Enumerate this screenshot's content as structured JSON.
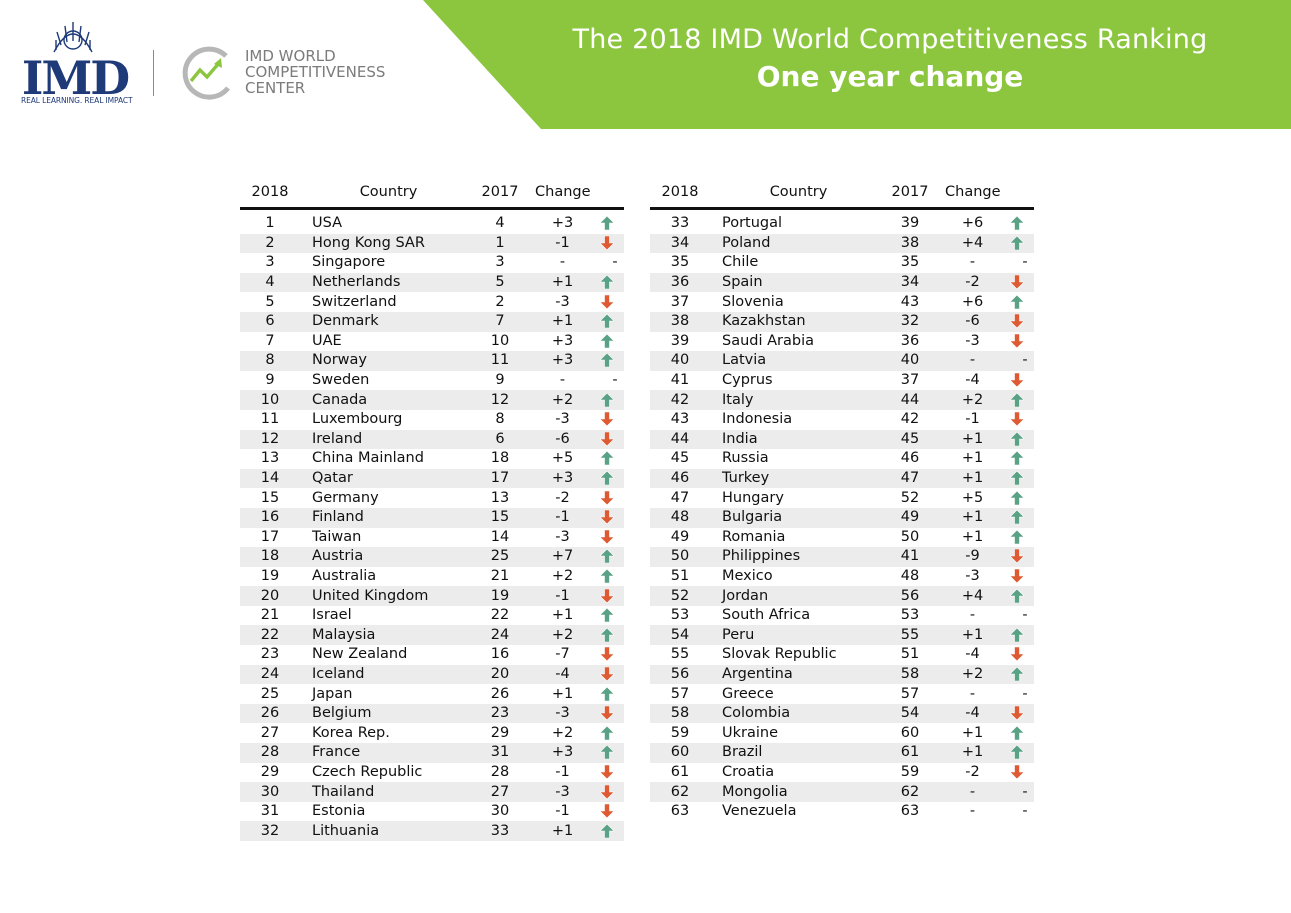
{
  "header": {
    "title": "The 2018 IMD World Competitiveness Ranking",
    "subtitle": "One year change",
    "imd_logo_text": "IMD",
    "imd_tagline": "REAL LEARNING. REAL IMPACT",
    "wcc_lines": [
      "IMD WORLD",
      "COMPETITIVENESS",
      "CENTER"
    ],
    "colors": {
      "banner_green": "#8cc63f",
      "imd_blue": "#1f3a78",
      "up_green": "#5aa285",
      "down_red": "#dd5a33"
    }
  },
  "table_headers": {
    "rank": "2018",
    "country": "Country",
    "prev": "2017",
    "change": "Change"
  },
  "rows": [
    {
      "rank": "1",
      "country": "USA",
      "prev": "4",
      "change": "+3",
      "dir": "up"
    },
    {
      "rank": "2",
      "country": "Hong Kong SAR",
      "prev": "1",
      "change": "-1",
      "dir": "down"
    },
    {
      "rank": "3",
      "country": "Singapore",
      "prev": "3",
      "change": "-",
      "dir": "same"
    },
    {
      "rank": "4",
      "country": "Netherlands",
      "prev": "5",
      "change": "+1",
      "dir": "up"
    },
    {
      "rank": "5",
      "country": "Switzerland",
      "prev": "2",
      "change": "-3",
      "dir": "down"
    },
    {
      "rank": "6",
      "country": "Denmark",
      "prev": "7",
      "change": "+1",
      "dir": "up"
    },
    {
      "rank": "7",
      "country": "UAE",
      "prev": "10",
      "change": "+3",
      "dir": "up"
    },
    {
      "rank": "8",
      "country": "Norway",
      "prev": "11",
      "change": "+3",
      "dir": "up"
    },
    {
      "rank": "9",
      "country": "Sweden",
      "prev": "9",
      "change": "-",
      "dir": "same"
    },
    {
      "rank": "10",
      "country": "Canada",
      "prev": "12",
      "change": "+2",
      "dir": "up"
    },
    {
      "rank": "11",
      "country": "Luxembourg",
      "prev": "8",
      "change": "-3",
      "dir": "down"
    },
    {
      "rank": "12",
      "country": "Ireland",
      "prev": "6",
      "change": "-6",
      "dir": "down"
    },
    {
      "rank": "13",
      "country": "China Mainland",
      "prev": "18",
      "change": "+5",
      "dir": "up"
    },
    {
      "rank": "14",
      "country": "Qatar",
      "prev": "17",
      "change": "+3",
      "dir": "up"
    },
    {
      "rank": "15",
      "country": "Germany",
      "prev": "13",
      "change": "-2",
      "dir": "down"
    },
    {
      "rank": "16",
      "country": "Finland",
      "prev": "15",
      "change": "-1",
      "dir": "down"
    },
    {
      "rank": "17",
      "country": "Taiwan",
      "prev": "14",
      "change": "-3",
      "dir": "down"
    },
    {
      "rank": "18",
      "country": "Austria",
      "prev": "25",
      "change": "+7",
      "dir": "up"
    },
    {
      "rank": "19",
      "country": "Australia",
      "prev": "21",
      "change": "+2",
      "dir": "up"
    },
    {
      "rank": "20",
      "country": "United Kingdom",
      "prev": "19",
      "change": "-1",
      "dir": "down"
    },
    {
      "rank": "21",
      "country": "Israel",
      "prev": "22",
      "change": "+1",
      "dir": "up"
    },
    {
      "rank": "22",
      "country": "Malaysia",
      "prev": "24",
      "change": "+2",
      "dir": "up"
    },
    {
      "rank": "23",
      "country": "New Zealand",
      "prev": "16",
      "change": "-7",
      "dir": "down"
    },
    {
      "rank": "24",
      "country": "Iceland",
      "prev": "20",
      "change": "-4",
      "dir": "down"
    },
    {
      "rank": "25",
      "country": "Japan",
      "prev": "26",
      "change": "+1",
      "dir": "up"
    },
    {
      "rank": "26",
      "country": "Belgium",
      "prev": "23",
      "change": "-3",
      "dir": "down"
    },
    {
      "rank": "27",
      "country": "Korea Rep.",
      "prev": "29",
      "change": "+2",
      "dir": "up"
    },
    {
      "rank": "28",
      "country": "France",
      "prev": "31",
      "change": "+3",
      "dir": "up"
    },
    {
      "rank": "29",
      "country": "Czech Republic",
      "prev": "28",
      "change": "-1",
      "dir": "down"
    },
    {
      "rank": "30",
      "country": "Thailand",
      "prev": "27",
      "change": "-3",
      "dir": "down"
    },
    {
      "rank": "31",
      "country": "Estonia",
      "prev": "30",
      "change": "-1",
      "dir": "down"
    },
    {
      "rank": "32",
      "country": "Lithuania",
      "prev": "33",
      "change": "+1",
      "dir": "up"
    },
    {
      "rank": "33",
      "country": "Portugal",
      "prev": "39",
      "change": "+6",
      "dir": "up"
    },
    {
      "rank": "34",
      "country": "Poland",
      "prev": "38",
      "change": "+4",
      "dir": "up"
    },
    {
      "rank": "35",
      "country": "Chile",
      "prev": "35",
      "change": "-",
      "dir": "same"
    },
    {
      "rank": "36",
      "country": "Spain",
      "prev": "34",
      "change": "-2",
      "dir": "down"
    },
    {
      "rank": "37",
      "country": "Slovenia",
      "prev": "43",
      "change": "+6",
      "dir": "up"
    },
    {
      "rank": "38",
      "country": "Kazakhstan",
      "prev": "32",
      "change": "-6",
      "dir": "down"
    },
    {
      "rank": "39",
      "country": "Saudi Arabia",
      "prev": "36",
      "change": "-3",
      "dir": "down"
    },
    {
      "rank": "40",
      "country": "Latvia",
      "prev": "40",
      "change": "-",
      "dir": "same"
    },
    {
      "rank": "41",
      "country": "Cyprus",
      "prev": "37",
      "change": "-4",
      "dir": "down"
    },
    {
      "rank": "42",
      "country": "Italy",
      "prev": "44",
      "change": "+2",
      "dir": "up"
    },
    {
      "rank": "43",
      "country": "Indonesia",
      "prev": "42",
      "change": "-1",
      "dir": "down"
    },
    {
      "rank": "44",
      "country": "India",
      "prev": "45",
      "change": "+1",
      "dir": "up"
    },
    {
      "rank": "45",
      "country": "Russia",
      "prev": "46",
      "change": "+1",
      "dir": "up"
    },
    {
      "rank": "46",
      "country": "Turkey",
      "prev": "47",
      "change": "+1",
      "dir": "up"
    },
    {
      "rank": "47",
      "country": "Hungary",
      "prev": "52",
      "change": "+5",
      "dir": "up"
    },
    {
      "rank": "48",
      "country": "Bulgaria",
      "prev": "49",
      "change": "+1",
      "dir": "up"
    },
    {
      "rank": "49",
      "country": "Romania",
      "prev": "50",
      "change": "+1",
      "dir": "up"
    },
    {
      "rank": "50",
      "country": "Philippines",
      "prev": "41",
      "change": "-9",
      "dir": "down"
    },
    {
      "rank": "51",
      "country": "Mexico",
      "prev": "48",
      "change": "-3",
      "dir": "down"
    },
    {
      "rank": "52",
      "country": "Jordan",
      "prev": "56",
      "change": "+4",
      "dir": "up"
    },
    {
      "rank": "53",
      "country": "South Africa",
      "prev": "53",
      "change": "-",
      "dir": "same"
    },
    {
      "rank": "54",
      "country": "Peru",
      "prev": "55",
      "change": "+1",
      "dir": "up"
    },
    {
      "rank": "55",
      "country": "Slovak Republic",
      "prev": "51",
      "change": "-4",
      "dir": "down"
    },
    {
      "rank": "56",
      "country": "Argentina",
      "prev": "58",
      "change": "+2",
      "dir": "up"
    },
    {
      "rank": "57",
      "country": "Greece",
      "prev": "57",
      "change": "-",
      "dir": "same"
    },
    {
      "rank": "58",
      "country": "Colombia",
      "prev": "54",
      "change": "-4",
      "dir": "down"
    },
    {
      "rank": "59",
      "country": "Ukraine",
      "prev": "60",
      "change": "+1",
      "dir": "up"
    },
    {
      "rank": "60",
      "country": "Brazil",
      "prev": "61",
      "change": "+1",
      "dir": "up"
    },
    {
      "rank": "61",
      "country": "Croatia",
      "prev": "59",
      "change": "-2",
      "dir": "down"
    },
    {
      "rank": "62",
      "country": "Mongolia",
      "prev": "62",
      "change": "-",
      "dir": "same"
    },
    {
      "rank": "63",
      "country": "Venezuela",
      "prev": "63",
      "change": "-",
      "dir": "same"
    }
  ]
}
